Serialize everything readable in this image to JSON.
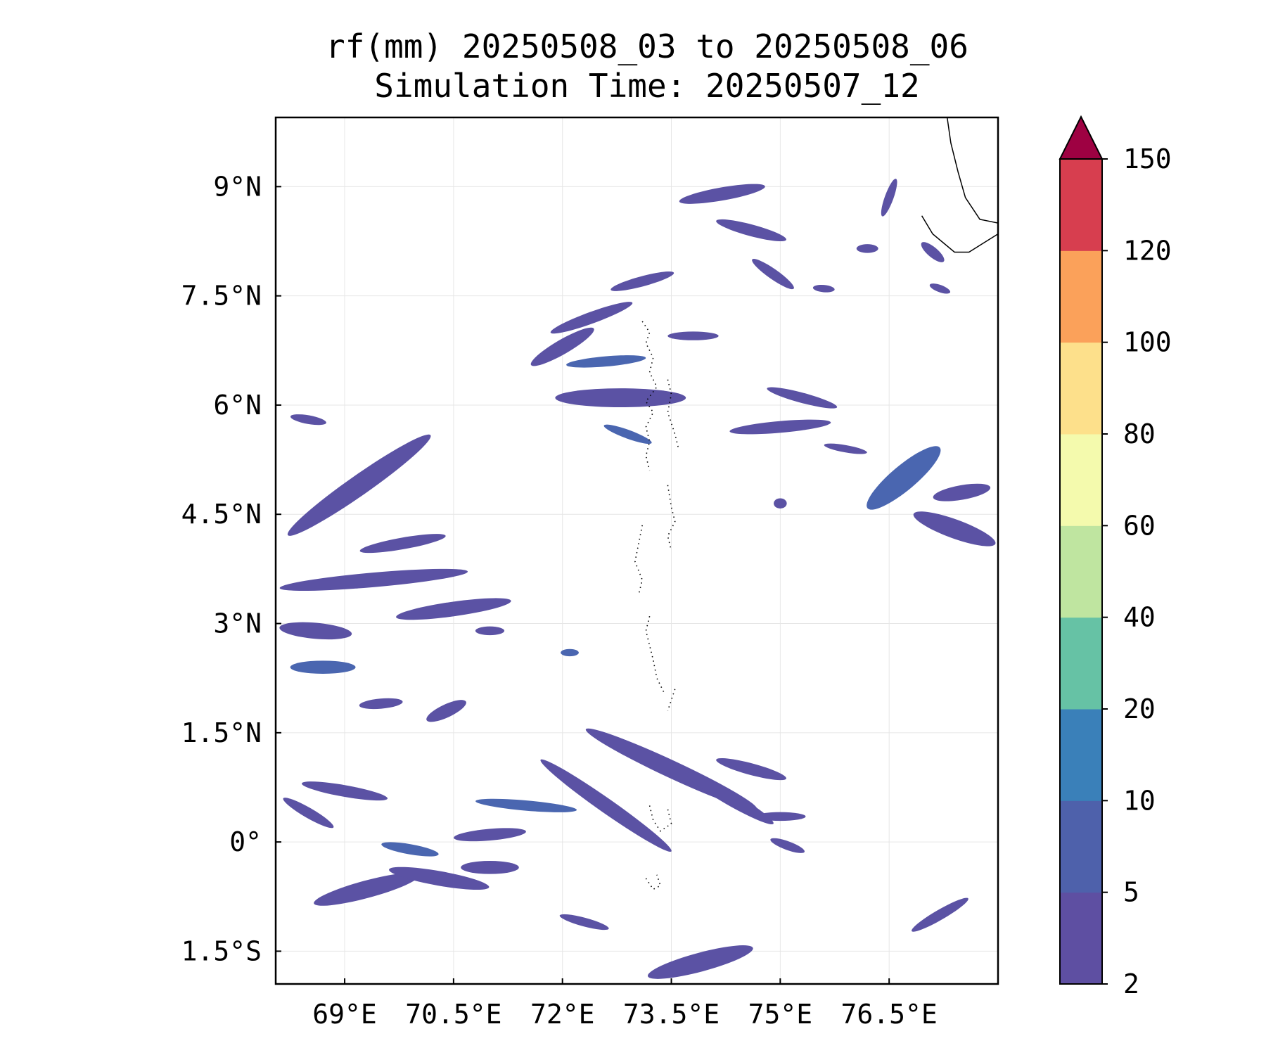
{
  "title": {
    "line1": "rf(mm) 20250508_03 to 20250508_06",
    "line2": "Simulation Time: 20250507_12"
  },
  "map": {
    "lon_range": [
      68.05,
      78.0
    ],
    "lat_range": [
      -1.95,
      9.95
    ],
    "x_ticks": [
      {
        "value": 69.0,
        "label": "69°E"
      },
      {
        "value": 70.5,
        "label": "70.5°E"
      },
      {
        "value": 72.0,
        "label": "72°E"
      },
      {
        "value": 73.5,
        "label": "73.5°E"
      },
      {
        "value": 75.0,
        "label": "75°E"
      },
      {
        "value": 76.5,
        "label": "76.5°E"
      }
    ],
    "y_ticks": [
      {
        "value": 9.0,
        "label": "9°N"
      },
      {
        "value": 7.5,
        "label": "7.5°N"
      },
      {
        "value": 6.0,
        "label": "6°N"
      },
      {
        "value": 4.5,
        "label": "4.5°N"
      },
      {
        "value": 3.0,
        "label": "3°N"
      },
      {
        "value": 1.5,
        "label": "1.5°N"
      },
      {
        "value": 0.0,
        "label": "0°"
      },
      {
        "value": -1.5,
        "label": "1.5°S"
      }
    ],
    "grid": true,
    "rain_color": "#5b52a4",
    "rain_color_strong": "#4a66b0",
    "coastline": [
      [
        77.3,
        9.95
      ],
      [
        77.35,
        9.6
      ],
      [
        77.45,
        9.2
      ],
      [
        77.55,
        8.85
      ],
      [
        77.75,
        8.55
      ],
      [
        78.0,
        8.5
      ],
      [
        78.0,
        8.35
      ],
      [
        77.6,
        8.1
      ],
      [
        77.4,
        8.1
      ],
      [
        77.1,
        8.35
      ],
      [
        76.95,
        8.6
      ]
    ],
    "atolls": [
      [
        [
          73.1,
          7.15
        ],
        [
          73.2,
          7.0
        ],
        [
          73.15,
          6.85
        ],
        [
          73.25,
          6.65
        ],
        [
          73.2,
          6.45
        ],
        [
          73.3,
          6.25
        ],
        [
          73.15,
          6.05
        ],
        [
          73.25,
          5.9
        ],
        [
          73.15,
          5.7
        ],
        [
          73.2,
          5.5
        ],
        [
          73.15,
          5.3
        ],
        [
          73.2,
          5.1
        ]
      ],
      [
        [
          73.45,
          6.35
        ],
        [
          73.5,
          6.15
        ],
        [
          73.45,
          5.9
        ],
        [
          73.55,
          5.6
        ],
        [
          73.6,
          5.4
        ]
      ],
      [
        [
          73.45,
          4.9
        ],
        [
          73.5,
          4.6
        ],
        [
          73.55,
          4.4
        ],
        [
          73.45,
          4.2
        ],
        [
          73.5,
          4.0
        ]
      ],
      [
        [
          73.1,
          4.35
        ],
        [
          73.05,
          4.1
        ],
        [
          73.0,
          3.85
        ],
        [
          73.1,
          3.6
        ],
        [
          73.05,
          3.4
        ]
      ],
      [
        [
          73.2,
          3.1
        ],
        [
          73.15,
          2.9
        ],
        [
          73.2,
          2.7
        ],
        [
          73.25,
          2.5
        ],
        [
          73.3,
          2.25
        ],
        [
          73.4,
          2.05
        ]
      ],
      [
        [
          73.55,
          2.1
        ],
        [
          73.5,
          1.95
        ],
        [
          73.45,
          1.8
        ]
      ],
      [
        [
          73.2,
          0.5
        ],
        [
          73.25,
          0.3
        ],
        [
          73.35,
          0.15
        ],
        [
          73.5,
          0.25
        ],
        [
          73.45,
          0.45
        ]
      ],
      [
        [
          73.15,
          -0.5
        ],
        [
          73.25,
          -0.65
        ],
        [
          73.35,
          -0.6
        ],
        [
          73.3,
          -0.45
        ]
      ]
    ],
    "rain_features": [
      {
        "lon": 69.2,
        "lat": 4.9,
        "w": 2.4,
        "h": 0.28,
        "angle": 35
      },
      {
        "lon": 69.4,
        "lat": 3.6,
        "w": 2.6,
        "h": 0.2,
        "angle": 5
      },
      {
        "lon": 70.5,
        "lat": 3.2,
        "w": 1.6,
        "h": 0.2,
        "angle": 8
      },
      {
        "lon": 68.6,
        "lat": 2.9,
        "w": 1.0,
        "h": 0.22,
        "angle": -5
      },
      {
        "lon": 68.7,
        "lat": 2.4,
        "w": 0.9,
        "h": 0.18,
        "angle": 0
      },
      {
        "lon": 69.8,
        "lat": 4.1,
        "w": 1.2,
        "h": 0.16,
        "angle": 10
      },
      {
        "lon": 68.5,
        "lat": 5.8,
        "w": 0.5,
        "h": 0.12,
        "angle": -10
      },
      {
        "lon": 69.5,
        "lat": 1.9,
        "w": 0.6,
        "h": 0.14,
        "angle": 5
      },
      {
        "lon": 70.4,
        "lat": 1.8,
        "w": 0.6,
        "h": 0.18,
        "angle": 25
      },
      {
        "lon": 72.4,
        "lat": 7.2,
        "w": 1.2,
        "h": 0.16,
        "angle": 20
      },
      {
        "lon": 72.0,
        "lat": 6.8,
        "w": 1.0,
        "h": 0.2,
        "angle": 30
      },
      {
        "lon": 72.6,
        "lat": 6.6,
        "w": 1.1,
        "h": 0.14,
        "angle": 5
      },
      {
        "lon": 72.8,
        "lat": 6.1,
        "w": 1.8,
        "h": 0.26,
        "angle": 0
      },
      {
        "lon": 73.1,
        "lat": 7.7,
        "w": 0.9,
        "h": 0.14,
        "angle": 15
      },
      {
        "lon": 74.2,
        "lat": 8.9,
        "w": 1.2,
        "h": 0.18,
        "angle": 10
      },
      {
        "lon": 74.6,
        "lat": 8.4,
        "w": 1.0,
        "h": 0.16,
        "angle": -15
      },
      {
        "lon": 75.0,
        "lat": 5.7,
        "w": 1.4,
        "h": 0.16,
        "angle": 5
      },
      {
        "lon": 75.3,
        "lat": 6.1,
        "w": 1.0,
        "h": 0.14,
        "angle": -15
      },
      {
        "lon": 76.7,
        "lat": 5.0,
        "w": 1.3,
        "h": 0.34,
        "angle": 40
      },
      {
        "lon": 77.4,
        "lat": 4.3,
        "w": 1.2,
        "h": 0.26,
        "angle": -20
      },
      {
        "lon": 77.5,
        "lat": 4.8,
        "w": 0.8,
        "h": 0.2,
        "angle": 10
      },
      {
        "lon": 73.5,
        "lat": 1.0,
        "w": 2.6,
        "h": 0.24,
        "angle": -25
      },
      {
        "lon": 72.6,
        "lat": 0.5,
        "w": 2.2,
        "h": 0.2,
        "angle": -35
      },
      {
        "lon": 74.3,
        "lat": 0.6,
        "w": 1.4,
        "h": 0.18,
        "angle": -30
      },
      {
        "lon": 74.6,
        "lat": 1.0,
        "w": 1.0,
        "h": 0.16,
        "angle": -15
      },
      {
        "lon": 71.5,
        "lat": 0.5,
        "w": 1.4,
        "h": 0.14,
        "angle": -5
      },
      {
        "lon": 71.0,
        "lat": 0.1,
        "w": 1.0,
        "h": 0.16,
        "angle": 5
      },
      {
        "lon": 69.0,
        "lat": 0.7,
        "w": 1.2,
        "h": 0.16,
        "angle": -10
      },
      {
        "lon": 68.5,
        "lat": 0.4,
        "w": 0.8,
        "h": 0.14,
        "angle": -30
      },
      {
        "lon": 69.3,
        "lat": -0.65,
        "w": 1.5,
        "h": 0.24,
        "angle": 15
      },
      {
        "lon": 70.3,
        "lat": -0.5,
        "w": 1.4,
        "h": 0.2,
        "angle": -10
      },
      {
        "lon": 71.0,
        "lat": -0.35,
        "w": 0.8,
        "h": 0.18,
        "angle": 0
      },
      {
        "lon": 69.9,
        "lat": -0.1,
        "w": 0.8,
        "h": 0.14,
        "angle": -10
      },
      {
        "lon": 73.9,
        "lat": -1.65,
        "w": 1.5,
        "h": 0.26,
        "angle": 15
      },
      {
        "lon": 77.2,
        "lat": -1.0,
        "w": 0.9,
        "h": 0.14,
        "angle": 30
      },
      {
        "lon": 72.3,
        "lat": -1.1,
        "w": 0.7,
        "h": 0.12,
        "angle": -15
      },
      {
        "lon": 75.0,
        "lat": 0.35,
        "w": 0.7,
        "h": 0.12,
        "angle": 0
      },
      {
        "lon": 75.1,
        "lat": -0.05,
        "w": 0.5,
        "h": 0.12,
        "angle": -20
      },
      {
        "lon": 71.0,
        "lat": 2.9,
        "w": 0.4,
        "h": 0.12,
        "angle": 0
      },
      {
        "lon": 72.1,
        "lat": 2.6,
        "w": 0.25,
        "h": 0.1,
        "angle": 0
      },
      {
        "lon": 75.0,
        "lat": 4.65,
        "w": 0.18,
        "h": 0.14,
        "angle": 0
      },
      {
        "lon": 77.2,
        "lat": 7.6,
        "w": 0.3,
        "h": 0.1,
        "angle": -20
      },
      {
        "lon": 75.6,
        "lat": 7.6,
        "w": 0.3,
        "h": 0.1,
        "angle": -5
      },
      {
        "lon": 76.2,
        "lat": 8.15,
        "w": 0.3,
        "h": 0.12,
        "angle": 0
      },
      {
        "lon": 77.1,
        "lat": 8.1,
        "w": 0.4,
        "h": 0.14,
        "angle": -40
      },
      {
        "lon": 76.5,
        "lat": 8.85,
        "w": 0.55,
        "h": 0.12,
        "angle": 70
      },
      {
        "lon": 72.9,
        "lat": 5.6,
        "w": 0.7,
        "h": 0.12,
        "angle": -20
      },
      {
        "lon": 73.8,
        "lat": 6.95,
        "w": 0.7,
        "h": 0.12,
        "angle": 0
      },
      {
        "lon": 74.9,
        "lat": 7.8,
        "w": 0.7,
        "h": 0.14,
        "angle": -35
      },
      {
        "lon": 75.9,
        "lat": 5.4,
        "w": 0.6,
        "h": 0.1,
        "angle": -10
      }
    ]
  },
  "colorbar": {
    "levels": [
      2,
      5,
      10,
      20,
      40,
      60,
      80,
      100,
      120,
      150
    ],
    "labels": [
      "2",
      "5",
      "10",
      "20",
      "40",
      "60",
      "80",
      "100",
      "120",
      "150"
    ],
    "colors": [
      "#5e4fa2",
      "#4e61ab",
      "#3a80b9",
      "#66c2a5",
      "#bfe5a0",
      "#f4faad",
      "#fde08b",
      "#fba15a",
      "#d73e4f"
    ],
    "extend_color": "#9e0142"
  }
}
